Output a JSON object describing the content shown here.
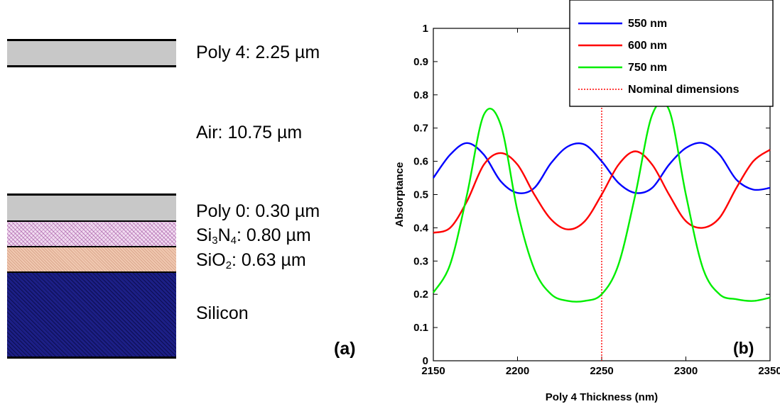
{
  "layers": {
    "poly4": "Poly 4: 2.25 µm",
    "air": "Air: 10.75 µm",
    "poly0": "Poly 0: 0.30 µm",
    "nitride": {
      "pre": "Si",
      "sub1": "3",
      "mid": "N",
      "sub2": "4",
      "post": ": 0.80 µm"
    },
    "oxide": {
      "pre": "SiO",
      "sub": "2",
      "post": ": 0.63 µm"
    },
    "silicon": "Silicon"
  },
  "panel_a_label": "(a)",
  "panel_b_label": "(b)",
  "chart_data": {
    "type": "line",
    "xlabel": "Poly 4 Thickness (nm)",
    "ylabel": "Absorptance",
    "xlim": [
      2150,
      2350
    ],
    "ylim": [
      0,
      1
    ],
    "xticks": [
      2150,
      2200,
      2250,
      2300,
      2350
    ],
    "yticks": [
      0,
      0.1,
      0.2,
      0.3,
      0.4,
      0.5,
      0.6,
      0.7,
      0.8,
      0.9,
      1
    ],
    "grid": false,
    "legend_position": "top-right",
    "x": [
      2150,
      2160,
      2170,
      2180,
      2190,
      2200,
      2210,
      2220,
      2230,
      2240,
      2250,
      2260,
      2270,
      2280,
      2290,
      2300,
      2310,
      2320,
      2330,
      2340,
      2350
    ],
    "series": [
      {
        "name": "550 nm",
        "color": "#0000ff",
        "values": [
          0.55,
          0.62,
          0.655,
          0.62,
          0.54,
          0.505,
          0.52,
          0.595,
          0.645,
          0.65,
          0.6,
          0.535,
          0.505,
          0.52,
          0.59,
          0.64,
          0.655,
          0.62,
          0.545,
          0.515,
          0.52
        ]
      },
      {
        "name": "600 nm",
        "color": "#ff0000",
        "values": [
          0.385,
          0.4,
          0.48,
          0.59,
          0.625,
          0.59,
          0.5,
          0.425,
          0.395,
          0.42,
          0.5,
          0.59,
          0.63,
          0.59,
          0.5,
          0.42,
          0.4,
          0.43,
          0.52,
          0.6,
          0.635
        ]
      },
      {
        "name": "750 nm",
        "color": "#00ee00",
        "values": [
          0.205,
          0.29,
          0.5,
          0.74,
          0.71,
          0.45,
          0.275,
          0.2,
          0.18,
          0.18,
          0.2,
          0.29,
          0.5,
          0.74,
          0.755,
          0.5,
          0.28,
          0.2,
          0.185,
          0.18,
          0.19
        ]
      }
    ],
    "nominal": {
      "name": "Nominal dimensions",
      "x": 2250,
      "color": "#ff0000",
      "style": "dotted"
    }
  }
}
